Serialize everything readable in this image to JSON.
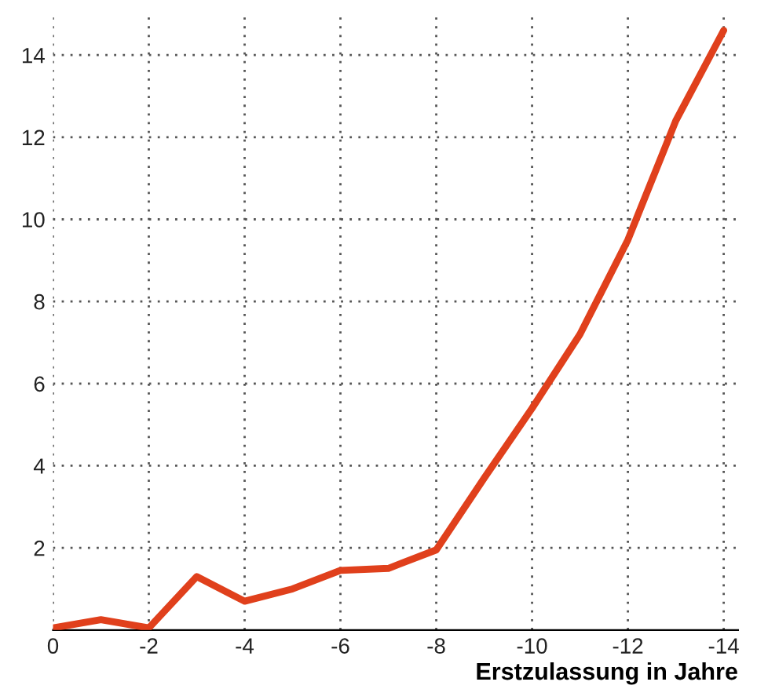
{
  "chart_data": {
    "type": "line",
    "xlabel": "Erstzulassung in Jahre",
    "x": [
      0,
      -1,
      -2,
      -3,
      -4,
      -5,
      -6,
      -7,
      -8,
      -9,
      -10,
      -11,
      -12,
      -13,
      -14
    ],
    "series": [
      {
        "color": "#e0401c",
        "values": [
          0.05,
          0.25,
          0.05,
          1.3,
          0.7,
          1.0,
          1.45,
          1.5,
          1.95,
          3.7,
          5.4,
          7.2,
          9.5,
          12.4,
          14.6
        ]
      }
    ],
    "xlim": [
      0,
      -14.3
    ],
    "ylim": [
      0,
      15
    ],
    "xticks": [
      {
        "value": 0,
        "label": "0"
      },
      {
        "value": -2,
        "label": "-2"
      },
      {
        "value": -4,
        "label": "-4"
      },
      {
        "value": -6,
        "label": "-6"
      },
      {
        "value": -8,
        "label": "-8"
      },
      {
        "value": -10,
        "label": "-10"
      },
      {
        "value": -12,
        "label": "-12"
      },
      {
        "value": -14,
        "label": "-14"
      }
    ],
    "yticks": [
      2,
      4,
      6,
      8,
      10,
      12,
      14
    ],
    "grid": true,
    "marker": "none",
    "line_style": "solid"
  }
}
